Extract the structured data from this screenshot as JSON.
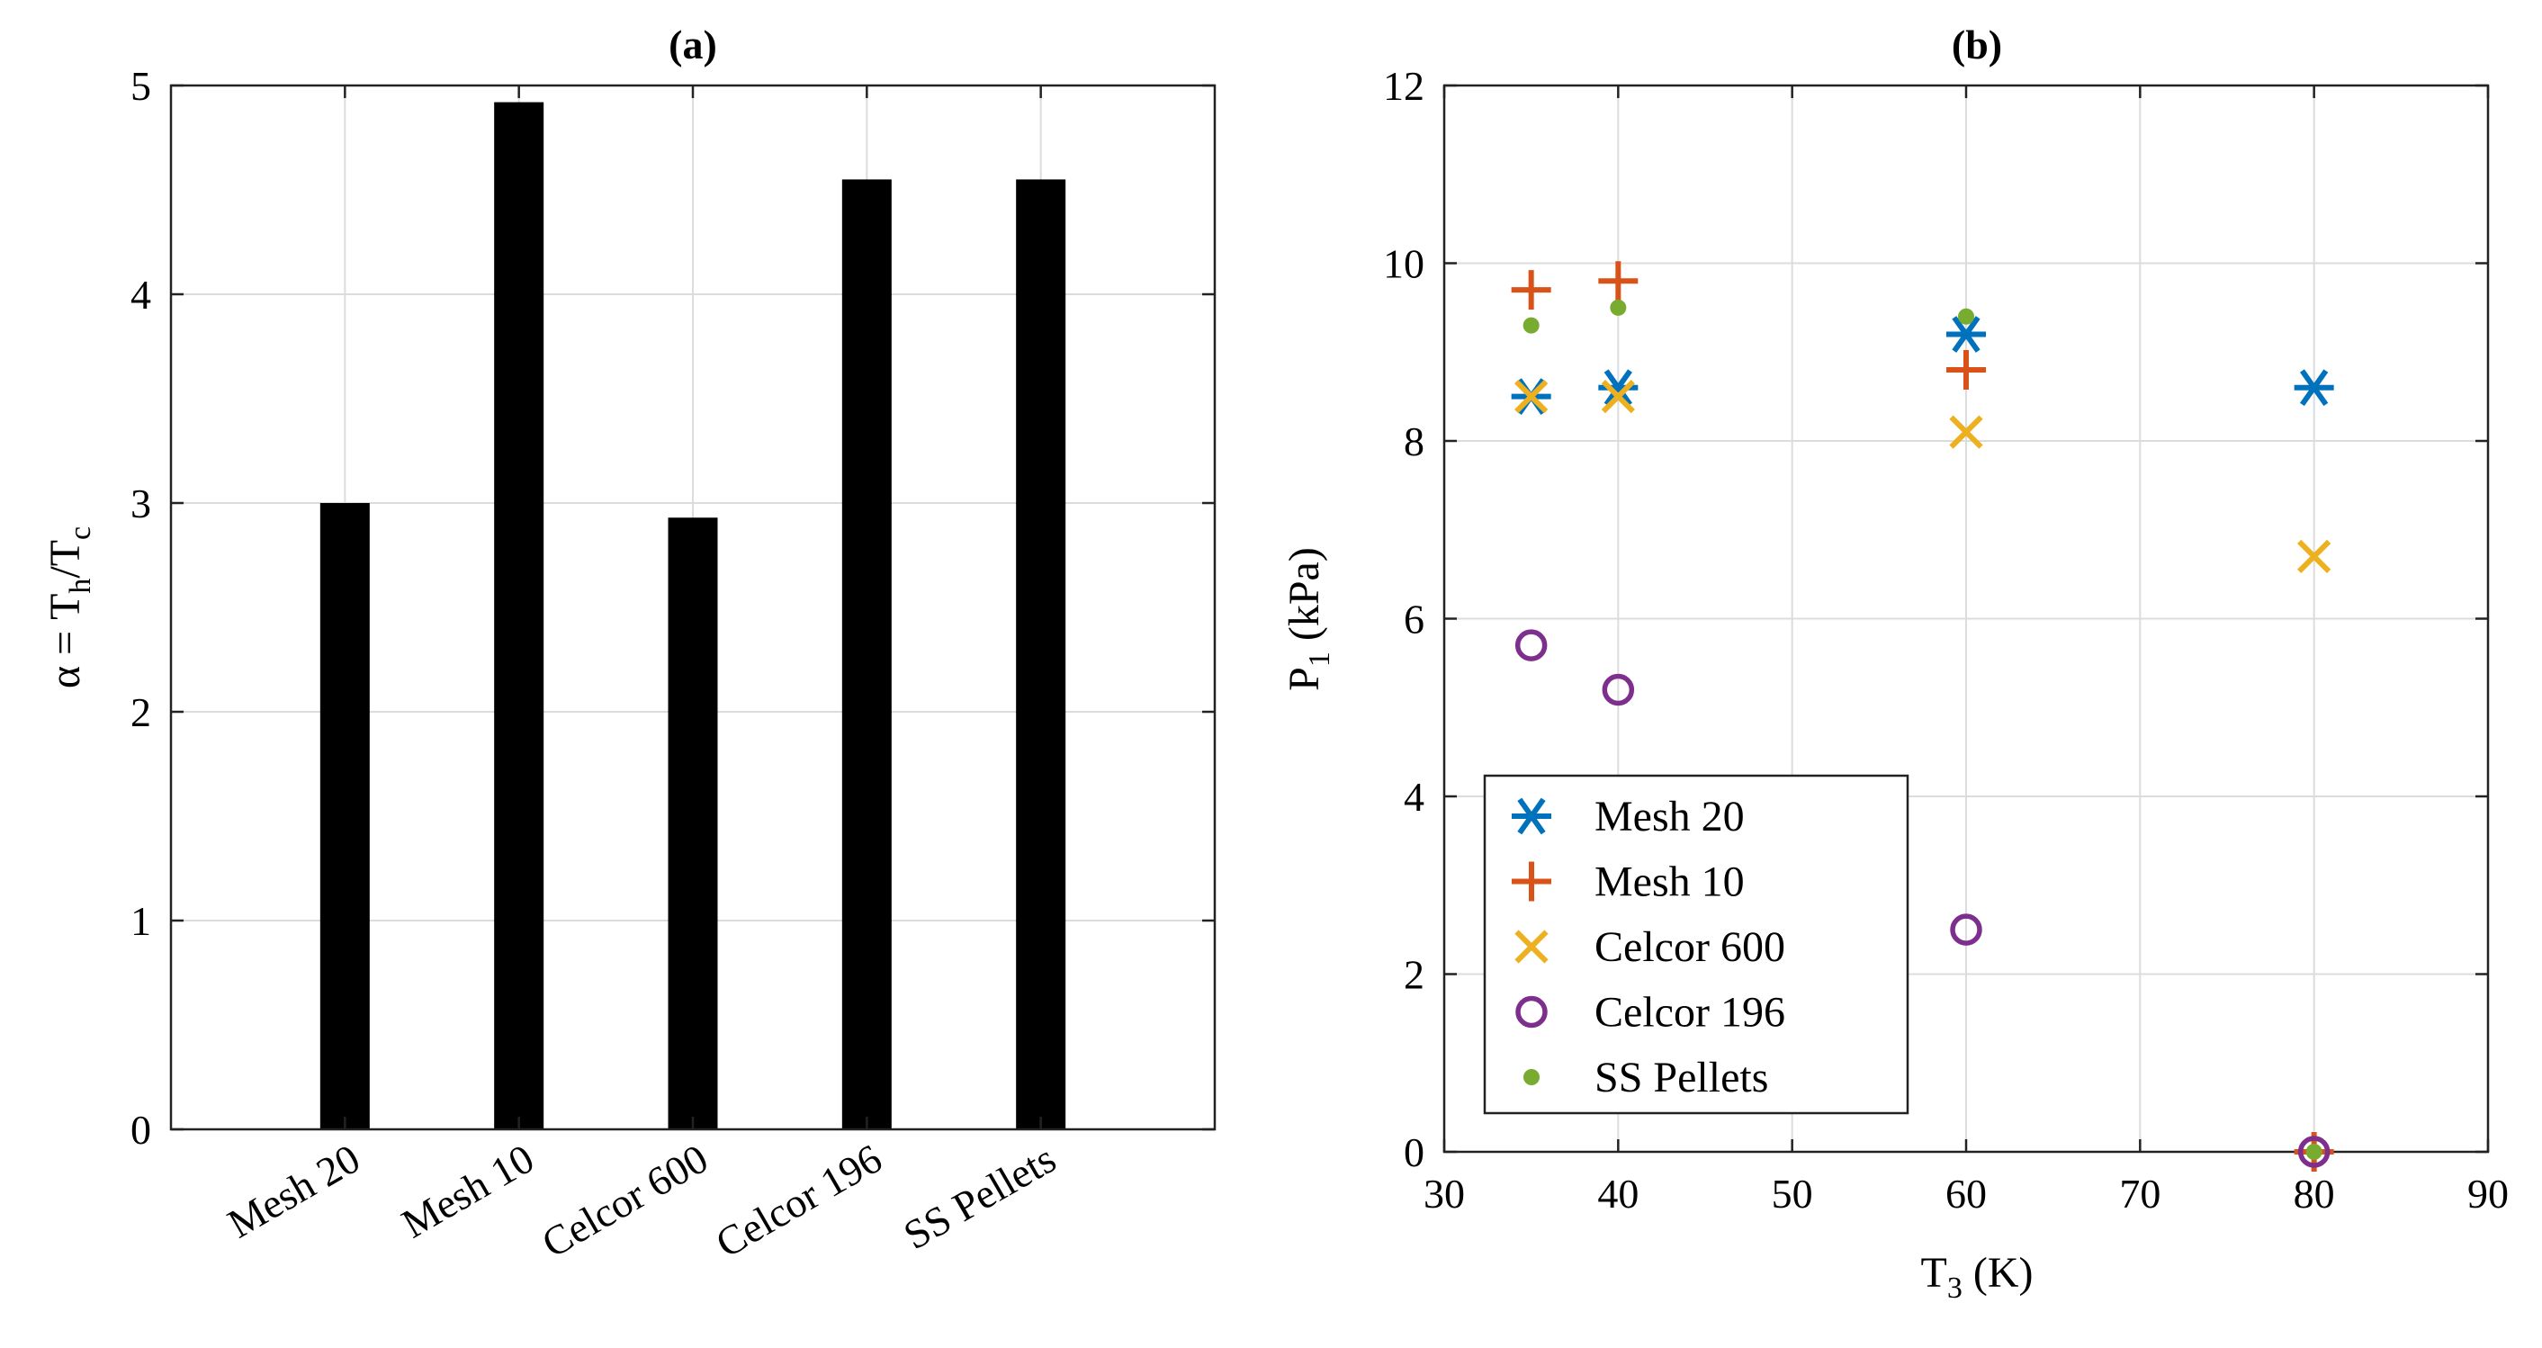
{
  "chart_data": [
    {
      "type": "bar",
      "title": "(a)",
      "ylabel": "α = T_h/T_c",
      "ylabel_parts": {
        "alpha": "α = T",
        "h": "h",
        "slash": "/T",
        "c": "c"
      },
      "categories": [
        "Mesh 20",
        "Mesh 10",
        "Celcor 600",
        "Celcor 196",
        "SS Pellets"
      ],
      "values": [
        3.0,
        4.92,
        2.93,
        4.55,
        4.55
      ],
      "ylim": [
        0,
        5
      ],
      "yticks": [
        0,
        1,
        2,
        3,
        4,
        5
      ],
      "bar_color": "#000000",
      "grid": true
    },
    {
      "type": "scatter",
      "title": "(b)",
      "xlabel": "T_3 (K)",
      "xlabel_parts": {
        "main": "T",
        "sub": "3",
        "unit": " (K)"
      },
      "ylabel": "P_1 (kPa)",
      "ylabel_parts": {
        "main": "P",
        "sub": "1",
        "unit": " (kPa)"
      },
      "xlim": [
        30,
        90
      ],
      "ylim": [
        0,
        12
      ],
      "xticks": [
        30,
        40,
        50,
        60,
        70,
        80,
        90
      ],
      "yticks": [
        0,
        2,
        4,
        6,
        8,
        10,
        12
      ],
      "grid": true,
      "legend": "bottom-left",
      "series": [
        {
          "name": "Mesh 20",
          "marker": "asterisk",
          "color": "#0072BD",
          "x": [
            35,
            40,
            60,
            80
          ],
          "y": [
            8.5,
            8.6,
            9.2,
            8.6
          ]
        },
        {
          "name": "Mesh 10",
          "marker": "plus",
          "color": "#D95319",
          "x": [
            35,
            40,
            60,
            80
          ],
          "y": [
            9.7,
            9.8,
            8.8,
            0
          ]
        },
        {
          "name": "Celcor 600",
          "marker": "x",
          "color": "#EDB120",
          "x": [
            35,
            40,
            60,
            80
          ],
          "y": [
            8.5,
            8.5,
            8.1,
            6.7
          ]
        },
        {
          "name": "Celcor 196",
          "marker": "circle",
          "color": "#7E2F8E",
          "x": [
            35,
            40,
            60,
            80
          ],
          "y": [
            5.7,
            5.2,
            2.5,
            0
          ]
        },
        {
          "name": "SS Pellets",
          "marker": "dot",
          "color": "#77AC30",
          "x": [
            35,
            40,
            60,
            80
          ],
          "y": [
            9.3,
            9.5,
            9.4,
            0
          ]
        }
      ]
    }
  ]
}
